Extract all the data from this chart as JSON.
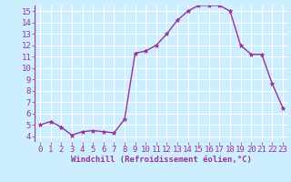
{
  "x": [
    0,
    1,
    2,
    3,
    4,
    5,
    6,
    7,
    8,
    9,
    10,
    11,
    12,
    13,
    14,
    15,
    16,
    17,
    18,
    19,
    20,
    21,
    22,
    23
  ],
  "y": [
    5.0,
    5.3,
    4.8,
    4.1,
    4.4,
    4.5,
    4.4,
    4.3,
    5.5,
    11.3,
    11.5,
    12.0,
    13.0,
    14.2,
    15.0,
    15.5,
    15.5,
    15.5,
    15.0,
    12.0,
    11.2,
    11.2,
    8.6,
    6.5
  ],
  "line_color": "#993399",
  "marker": "*",
  "marker_size": 3.5,
  "bg_color": "#cceeff",
  "grid_color": "#ffffff",
  "xlabel": "Windchill (Refroidissement éolien,°C)",
  "xlabel_color": "#993399",
  "tick_color": "#993399",
  "ylim_min": 4,
  "ylim_max": 15,
  "xlim_min": 0,
  "xlim_max": 23,
  "yticks": [
    4,
    5,
    6,
    7,
    8,
    9,
    10,
    11,
    12,
    13,
    14,
    15
  ],
  "xticks": [
    0,
    1,
    2,
    3,
    4,
    5,
    6,
    7,
    8,
    9,
    10,
    11,
    12,
    13,
    14,
    15,
    16,
    17,
    18,
    19,
    20,
    21,
    22,
    23
  ],
  "linewidth": 1.0,
  "xlabel_fontsize": 6.5,
  "tick_fontsize": 6.5
}
